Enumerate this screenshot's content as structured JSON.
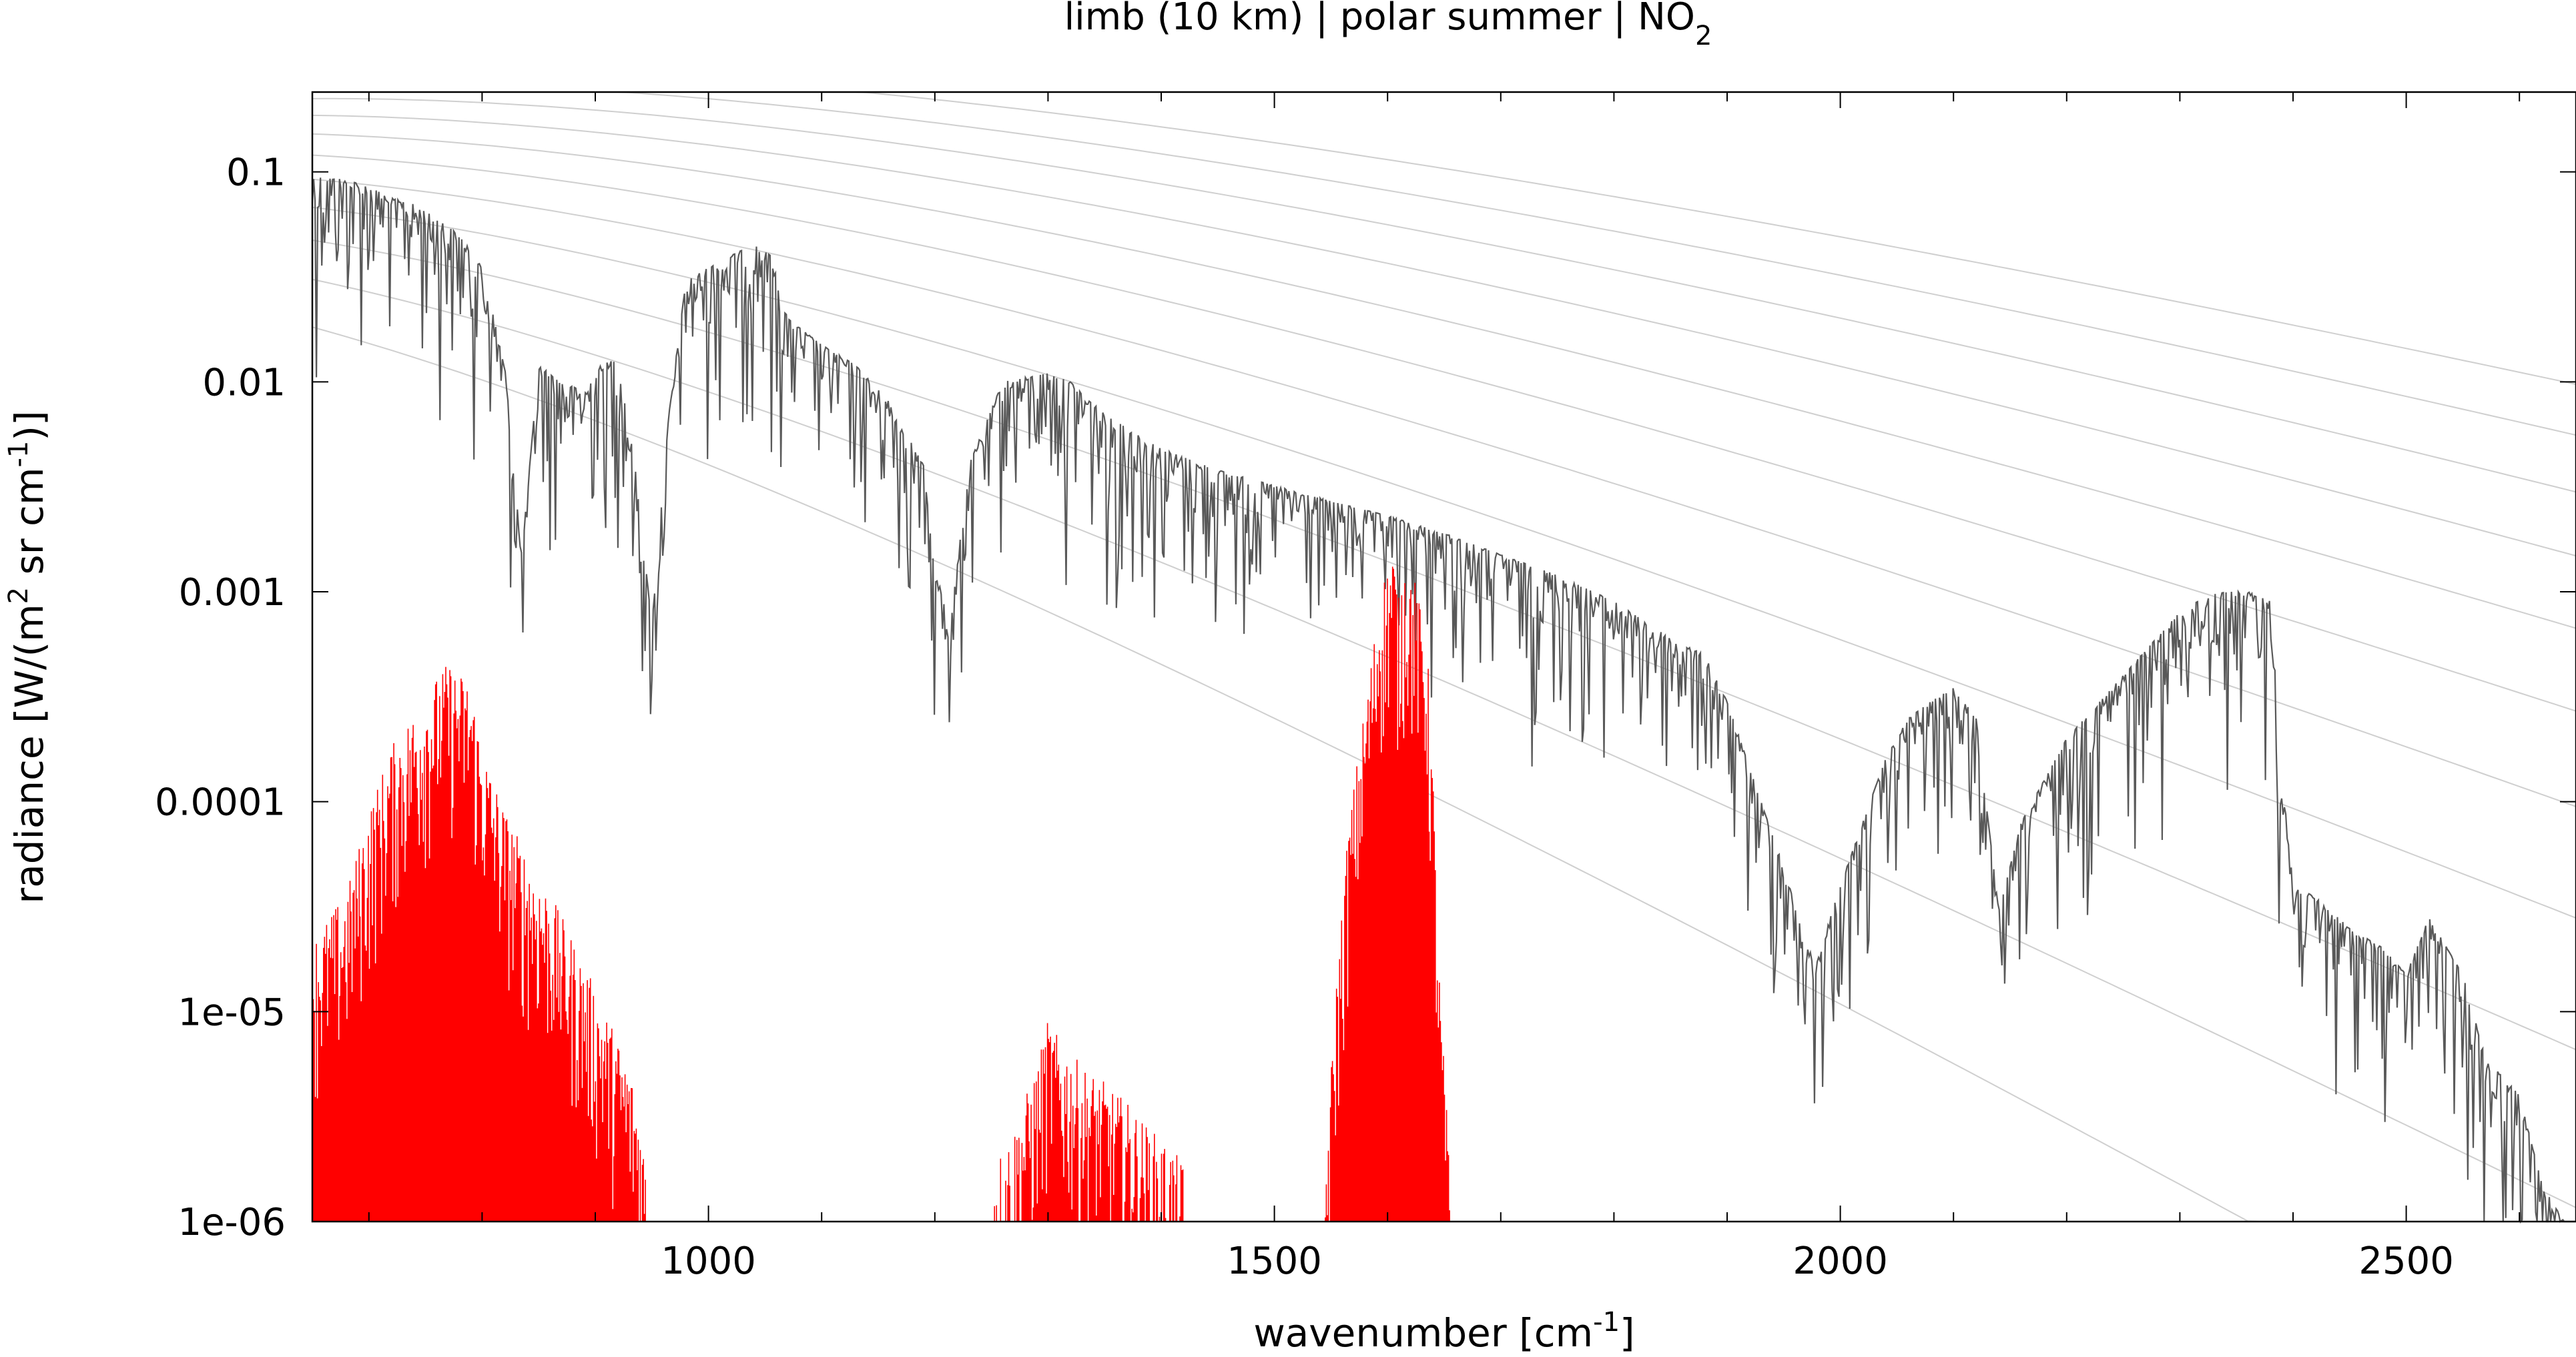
{
  "chart_data": {
    "type": "line",
    "title": {
      "prefix": "limb (10 km) | polar summer | NO",
      "subscript": "2"
    },
    "xlabel": {
      "prefix": "wavenumber [cm",
      "superscript": "-1",
      "suffix": "]"
    },
    "ylabel": {
      "p1": "radiance [W/(m",
      "s1": "2",
      "p2": " sr cm",
      "s2": "-1",
      "p3": ")]"
    },
    "x_range": [
      650,
      2650
    ],
    "y_range": [
      1e-06,
      0.24
    ],
    "y_scale": "log",
    "x_ticks": [
      1000,
      1500,
      2000,
      2500
    ],
    "y_ticks": [
      {
        "value": 0.1,
        "label": "0.1"
      },
      {
        "value": 0.01,
        "label": "0.01"
      },
      {
        "value": 0.001,
        "label": "0.001"
      },
      {
        "value": 0.0001,
        "label": "0.0001"
      },
      {
        "value": 1e-05,
        "label": "1e-05"
      },
      {
        "value": 1e-06,
        "label": "1e-06"
      }
    ],
    "grid": false,
    "planck_reference_temperatures_K": [
      180,
      200,
      220,
      240,
      260,
      280,
      300,
      320,
      340,
      360,
      380
    ],
    "series": [
      {
        "role": "total radiance",
        "color": "#595959",
        "x": [
          650,
          680,
          700,
          720,
          740,
          760,
          780,
          800,
          820,
          835,
          850,
          870,
          890,
          905,
          920,
          935,
          950,
          965,
          980,
          1000,
          1020,
          1040,
          1055,
          1070,
          1100,
          1130,
          1160,
          1190,
          1200,
          1215,
          1230,
          1260,
          1300,
          1320,
          1350,
          1400,
          1450,
          1500,
          1550,
          1600,
          1650,
          1700,
          1750,
          1800,
          1850,
          1880,
          1900,
          1930,
          1950,
          1970,
          1980,
          2000,
          2020,
          2040,
          2060,
          2080,
          2100,
          2120,
          2140,
          2160,
          2200,
          2250,
          2300,
          2330,
          2360,
          2380,
          2390,
          2400,
          2420,
          2450,
          2480,
          2500,
          2520,
          2550,
          2570,
          2600,
          2620,
          2650
        ],
        "y": [
          0.095,
          0.092,
          0.085,
          0.075,
          0.07,
          0.06,
          0.05,
          0.035,
          0.012,
          0.0015,
          0.012,
          0.01,
          0.009,
          0.012,
          0.013,
          0.004,
          0.0007,
          0.007,
          0.03,
          0.035,
          0.04,
          0.045,
          0.04,
          0.02,
          0.015,
          0.012,
          0.008,
          0.004,
          0.0012,
          0.0008,
          0.004,
          0.01,
          0.011,
          0.01,
          0.007,
          0.0048,
          0.0038,
          0.0032,
          0.0027,
          0.0023,
          0.0019,
          0.0015,
          0.0012,
          0.0009,
          0.0006,
          0.0005,
          0.0003,
          0.0001,
          5e-05,
          2e-05,
          1.8e-05,
          4e-05,
          8e-05,
          0.00016,
          0.00025,
          0.0003,
          0.00035,
          0.00025,
          3e-05,
          8e-05,
          0.0002,
          0.0004,
          0.0008,
          0.001,
          0.001,
          0.0009,
          0.00015,
          4e-05,
          3.5e-05,
          2.5e-05,
          2e-05,
          1.5e-05,
          2.8e-05,
          1.5e-05,
          6e-06,
          4e-06,
          1.5e-06,
          8e-07
        ]
      },
      {
        "role": "NO2 contribution",
        "color": "#ff0000",
        "bands": [
          {
            "x": [
              650,
              680,
              700,
              720,
              750,
              770,
              790,
              800,
              820,
              840,
              860,
              880,
              900,
              920,
              930,
              940,
              945
            ],
            "y": [
              1.2e-05,
              2e-05,
              5e-05,
              0.0001,
              0.00018,
              0.00025,
              0.0002,
              0.0001,
              5e-05,
              3e-05,
              2e-05,
              1.2e-05,
              7e-06,
              4e-06,
              3e-06,
              1.8e-06,
              1e-06
            ]
          },
          {
            "x": [
              1250,
              1270,
              1290,
              1300,
              1310,
              1330,
              1350,
              1370,
              1390,
              1410,
              1420
            ],
            "y": [
              1e-06,
              1.5e-06,
              3e-06,
              5e-06,
              4e-06,
              3e-06,
              2.5e-06,
              2e-06,
              1.5e-06,
              1.2e-06,
              1e-06
            ]
          },
          {
            "x": [
              1545,
              1555,
              1565,
              1575,
              1585,
              1595,
              1605,
              1610,
              1615,
              1625,
              1635,
              1640,
              1645,
              1650,
              1655
            ],
            "y": [
              1e-06,
              8e-06,
              4e-05,
              0.0001,
              0.00025,
              0.0006,
              0.0009,
              0.0005,
              0.0008,
              0.0006,
              0.0003,
              8e-05,
              1e-05,
              3e-06,
              1e-06
            ]
          }
        ]
      }
    ]
  }
}
